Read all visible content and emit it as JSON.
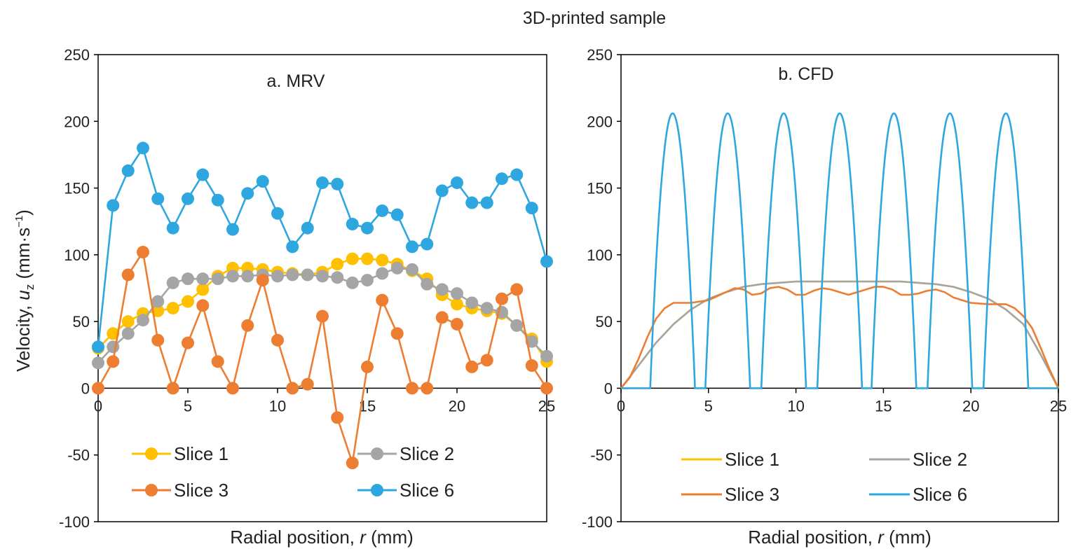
{
  "figure_title": "3D-printed sample",
  "colors": {
    "slice1": "#FFC000",
    "slice2": "#A5A5A5",
    "slice3": "#ED7D31",
    "slice6": "#2EA7E0",
    "axis": "#000000"
  },
  "ylabel_parts": {
    "pre": "Velocity, ",
    "var": "u",
    "sub": "z",
    "units_pre": "  (mm·s",
    "sup": "−1",
    "units_post": ")"
  },
  "xlabel_parts": {
    "pre": "Radial position, ",
    "var": "r",
    "post": "  (mm)"
  },
  "chart_data": [
    {
      "type": "line",
      "title": "a. MRV",
      "xlim": [
        0,
        25
      ],
      "ylim": [
        -100,
        250
      ],
      "xticks": [
        0,
        5,
        10,
        15,
        20,
        25
      ],
      "yticks": [
        -100,
        -50,
        0,
        50,
        100,
        150,
        200,
        250
      ],
      "markers": true,
      "legend": [
        "Slice 1",
        "Slice 2",
        "Slice 3",
        "Slice 6"
      ],
      "series": [
        {
          "name": "Slice 1",
          "color": "#FFC000",
          "x": [
            0,
            0.83,
            1.67,
            2.5,
            3.33,
            4.17,
            5,
            5.83,
            6.67,
            7.5,
            8.33,
            9.17,
            10,
            10.83,
            11.67,
            12.5,
            13.33,
            14.17,
            15,
            15.83,
            16.67,
            17.5,
            18.33,
            19.17,
            20,
            20.83,
            21.67,
            22.5,
            23.33,
            24.17,
            25
          ],
          "y": [
            30,
            41,
            50,
            56,
            58,
            60,
            65,
            74,
            84,
            90,
            90,
            89,
            87,
            86,
            85,
            87,
            93,
            97,
            97,
            96,
            93,
            88,
            82,
            70,
            63,
            60,
            58,
            56,
            47,
            37,
            20
          ]
        },
        {
          "name": "Slice 2",
          "color": "#A5A5A5",
          "x": [
            0,
            0.83,
            1.67,
            2.5,
            3.33,
            4.17,
            5,
            5.83,
            6.67,
            7.5,
            8.33,
            9.17,
            10,
            10.83,
            11.67,
            12.5,
            13.33,
            14.17,
            15,
            15.83,
            16.67,
            17.5,
            18.33,
            19.17,
            20,
            20.83,
            21.67,
            22.5,
            23.33,
            24.17,
            25
          ],
          "y": [
            19,
            31,
            41,
            51,
            65,
            79,
            82,
            82,
            82,
            84,
            84,
            85,
            84,
            85,
            85,
            84,
            83,
            79,
            81,
            86,
            90,
            89,
            78,
            74,
            71,
            64,
            60,
            57,
            47,
            35,
            24
          ]
        },
        {
          "name": "Slice 3",
          "color": "#ED7D31",
          "x": [
            0,
            0.83,
            1.67,
            2.5,
            3.33,
            4.17,
            5,
            5.83,
            6.67,
            7.5,
            8.33,
            9.17,
            10,
            10.83,
            11.67,
            12.5,
            13.33,
            14.17,
            15,
            15.83,
            16.67,
            17.5,
            18.33,
            19.17,
            20,
            20.83,
            21.67,
            22.5,
            23.33,
            24.17,
            25
          ],
          "y": [
            0,
            20,
            85,
            102,
            36,
            0,
            34,
            62,
            20,
            0,
            47,
            81,
            36,
            0,
            3,
            54,
            -22,
            -56,
            16,
            66,
            41,
            0,
            0,
            53,
            48,
            16,
            21,
            67,
            74,
            17,
            0
          ]
        },
        {
          "name": "Slice 6",
          "color": "#2EA7E0",
          "x": [
            0,
            0.83,
            1.67,
            2.5,
            3.33,
            4.17,
            5,
            5.83,
            6.67,
            7.5,
            8.33,
            9.17,
            10,
            10.83,
            11.67,
            12.5,
            13.33,
            14.17,
            15,
            15.83,
            16.67,
            17.5,
            18.33,
            19.17,
            20,
            20.83,
            21.67,
            22.5,
            23.33,
            24.17,
            25
          ],
          "y": [
            31,
            137,
            163,
            180,
            142,
            120,
            142,
            160,
            141,
            119,
            146,
            155,
            131,
            106,
            120,
            154,
            153,
            123,
            120,
            133,
            130,
            106,
            108,
            148,
            154,
            139,
            139,
            157,
            160,
            135,
            95
          ]
        }
      ]
    },
    {
      "type": "line",
      "title": "b. CFD",
      "xlim": [
        0,
        25
      ],
      "ylim": [
        -100,
        250
      ],
      "xticks": [
        0,
        5,
        10,
        15,
        20,
        25
      ],
      "yticks": [
        -100,
        -50,
        0,
        50,
        100,
        150,
        200,
        250
      ],
      "markers": false,
      "legend": [
        "Slice 1",
        "Slice 2",
        "Slice 3",
        "Slice 6"
      ],
      "series": [
        {
          "name": "Slice 1",
          "color": "#FFC000",
          "x": [
            0,
            1,
            2,
            3,
            4,
            5,
            6,
            7,
            8,
            9,
            10,
            11,
            12,
            13,
            14,
            15,
            16,
            17,
            18,
            19,
            20,
            21,
            22,
            23,
            24,
            25
          ],
          "y": [
            0,
            17,
            34,
            48,
            59,
            67,
            72,
            76,
            78,
            79,
            80,
            80,
            80,
            80,
            80,
            80,
            80,
            79,
            78,
            76,
            72,
            67,
            59,
            48,
            25,
            0
          ]
        },
        {
          "name": "Slice 2",
          "color": "#A5A5A5",
          "x": [
            0,
            1,
            2,
            3,
            4,
            5,
            6,
            7,
            8,
            9,
            10,
            11,
            12,
            13,
            14,
            15,
            16,
            17,
            18,
            19,
            20,
            21,
            22,
            23,
            24,
            25
          ],
          "y": [
            0,
            17,
            34,
            48,
            59,
            67,
            72,
            76,
            78,
            79,
            80,
            80,
            80,
            80,
            80,
            80,
            80,
            79,
            78,
            76,
            72,
            67,
            59,
            48,
            25,
            0
          ]
        },
        {
          "name": "Slice 3",
          "color": "#ED7D31",
          "x": [
            0,
            0.5,
            1,
            1.5,
            2,
            2.5,
            3,
            4,
            5,
            6,
            6.5,
            7,
            7.5,
            8,
            8.5,
            9,
            9.5,
            10,
            10.5,
            11,
            11.5,
            12,
            12.5,
            13,
            13.5,
            14,
            14.5,
            15,
            15.5,
            16,
            16.5,
            17,
            17.5,
            18,
            18.5,
            19,
            19.5,
            20,
            21,
            22,
            22.5,
            23,
            23.5,
            24,
            24.5,
            25
          ],
          "y": [
            0,
            8,
            22,
            38,
            52,
            60,
            64,
            64,
            66,
            72,
            75,
            74,
            70,
            71,
            75,
            76,
            74,
            70,
            70,
            73,
            75,
            74,
            72,
            70,
            72,
            74,
            76,
            76,
            74,
            70,
            70,
            71,
            73,
            74,
            72,
            68,
            66,
            64,
            63,
            63,
            60,
            54,
            45,
            30,
            14,
            0
          ]
        },
        {
          "name": "Slice 6",
          "color": "#2EA7E0",
          "peaks": [
            2.95,
            6.1,
            9.3,
            12.5,
            15.6,
            18.8,
            22.0
          ],
          "peak_value": 206,
          "half_width": 1.28
        }
      ]
    }
  ]
}
